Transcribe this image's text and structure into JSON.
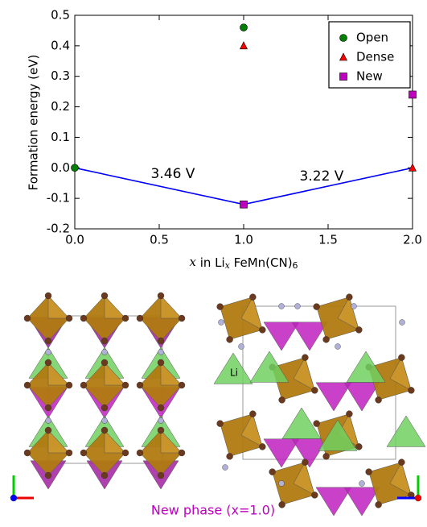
{
  "chart_data": {
    "type": "scatter",
    "ylabel": "Formation energy (eV)",
    "xlabel": [
      "x",
      " in Li",
      "x",
      " FeMn(CN)",
      "6"
    ],
    "xlim": [
      0,
      2
    ],
    "ylim": [
      -0.2,
      0.5
    ],
    "xticks": [
      {
        "value": 0,
        "label": "0.0"
      },
      0.5,
      {
        "value": 1,
        "label": "1.0"
      },
      1.5,
      {
        "value": 2,
        "label": "2.0"
      }
    ],
    "yticks": [
      -0.2,
      -0.1,
      {
        "value": 0,
        "label": "0.0"
      },
      0.1,
      0.2,
      0.3,
      0.4,
      0.5
    ],
    "series": [
      {
        "name": "Open",
        "color": "#008000",
        "marker": "circle",
        "x": [
          0,
          1
        ],
        "values": [
          0,
          0.46
        ]
      },
      {
        "name": "Dense",
        "color": "#ff0000",
        "marker": "triangle",
        "x": [
          1,
          2
        ],
        "values": [
          0.4,
          0
        ]
      },
      {
        "name": "New",
        "color": "#bf00bf",
        "marker": "square",
        "x": [
          1,
          2
        ],
        "values": [
          -0.12,
          0.24
        ]
      }
    ],
    "hull": {
      "color": "#0000ff",
      "x": [
        0,
        1,
        2
      ],
      "values": [
        0,
        -0.12,
        0
      ]
    },
    "annotations": [
      "3.46 V",
      "3.22 V"
    ],
    "legend": "upper right"
  },
  "figure": {
    "atom_label": "Li",
    "caption": "New phase (x=1.0)"
  }
}
